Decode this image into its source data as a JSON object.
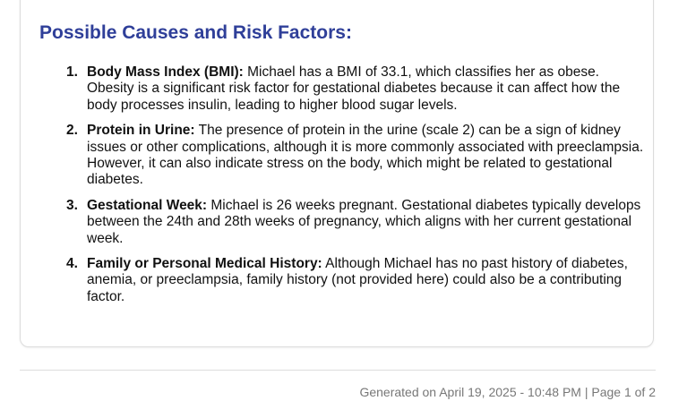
{
  "section": {
    "heading": "Possible Causes and Risk Factors:",
    "items": [
      {
        "number": "1.",
        "term": "Body Mass Index (BMI):",
        "text": " Michael has a BMI of 33.1, which classifies her as obese. Obesity is a significant risk factor for gestational diabetes because it can affect how the body processes insulin, leading to higher blood sugar levels."
      },
      {
        "number": "2.",
        "term": "Protein in Urine:",
        "text": " The presence of protein in the urine (scale 2) can be a sign of kidney issues or other complications, although it is more commonly associated with preeclampsia. However, it can also indicate stress on the body, which might be related to gestational diabetes."
      },
      {
        "number": "3.",
        "term": "Gestational Week:",
        "text": " Michael is 26 weeks pregnant. Gestational diabetes typically develops between the 24th and 28th weeks of pregnancy, which aligns with her current gestational week."
      },
      {
        "number": "4.",
        "term": "Family or Personal Medical History:",
        "text": " Although Michael has no past history of diabetes, anemia, or preeclampsia, family history (not provided here) could also be a contributing factor."
      }
    ]
  },
  "footer": {
    "text": "Generated on April 19, 2025 - 10:48 PM | Page 1 of 2"
  }
}
